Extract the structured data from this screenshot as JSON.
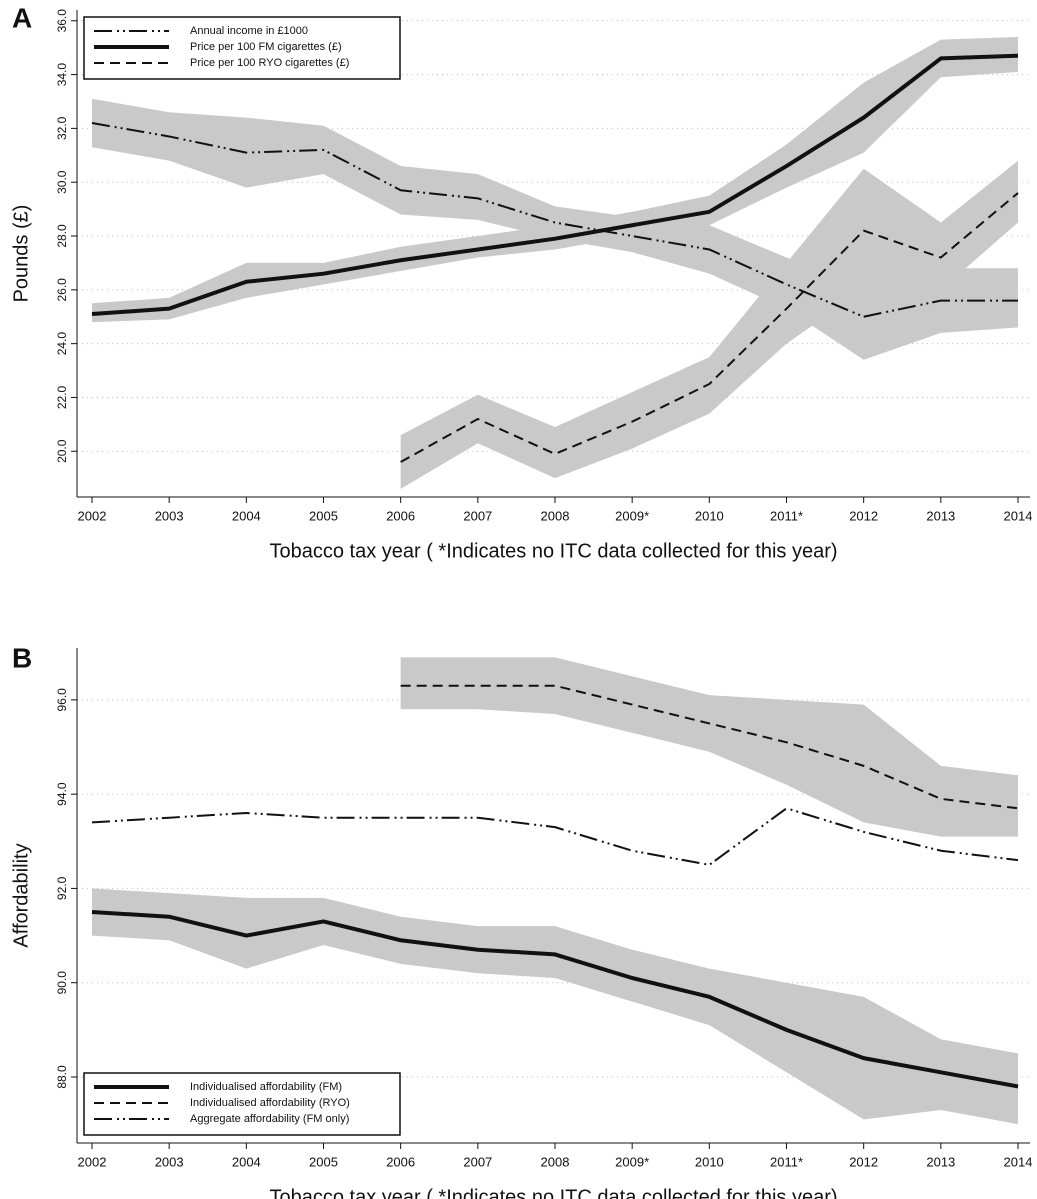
{
  "chart_data": [
    {
      "type": "line",
      "panel_label": "A",
      "xlabel": "Tobacco tax year ( *Indicates no ITC data collected for this year)",
      "ylabel": "Pounds (£)",
      "categories": [
        "2002",
        "2003",
        "2004",
        "2005",
        "2006",
        "2007",
        "2008",
        "2009*",
        "2010",
        "2011*",
        "2012",
        "2013",
        "2014"
      ],
      "ylim": [
        18.3,
        36.4
      ],
      "yticks": [
        {
          "value": 20,
          "label": "20.0"
        },
        {
          "value": 22,
          "label": "22.0"
        },
        {
          "value": 24,
          "label": "24.0"
        },
        {
          "value": 26,
          "label": "26.0"
        },
        {
          "value": 28,
          "label": "28.0"
        },
        {
          "value": 30,
          "label": "30.0"
        },
        {
          "value": 32,
          "label": "32.0"
        },
        {
          "value": 34,
          "label": "34.0"
        },
        {
          "value": 36,
          "label": "36.0"
        }
      ],
      "grid": true,
      "legend_position": "top-left",
      "band_color": "#c9c9c9",
      "series": [
        {
          "name": "Annual income in £1000",
          "color": "#111111",
          "linestyle": "dash-dot-dot",
          "values": [
            32.2,
            31.7,
            31.1,
            31.2,
            29.7,
            29.4,
            28.5,
            28.0,
            27.5,
            26.2,
            25.0,
            25.6,
            25.6
          ],
          "lower": [
            31.3,
            30.8,
            29.8,
            30.3,
            28.8,
            28.6,
            27.9,
            27.4,
            26.6,
            25.3,
            23.4,
            24.4,
            24.6
          ],
          "upper": [
            33.1,
            32.6,
            32.4,
            32.1,
            30.6,
            30.3,
            29.1,
            28.7,
            28.4,
            27.2,
            26.1,
            26.8,
            26.8
          ]
        },
        {
          "name": "Price per 100 FM cigarettes (£)",
          "color": "#111111",
          "linestyle": "solid",
          "values": [
            25.1,
            25.3,
            26.3,
            26.6,
            27.1,
            27.5,
            27.9,
            28.4,
            28.9,
            30.6,
            32.4,
            34.6,
            34.7
          ],
          "lower": [
            24.8,
            24.9,
            25.7,
            26.2,
            26.7,
            27.2,
            27.5,
            28.0,
            28.4,
            29.8,
            31.1,
            33.9,
            34.1
          ],
          "upper": [
            25.5,
            25.7,
            27.0,
            27.0,
            27.6,
            28.0,
            28.4,
            28.9,
            29.5,
            31.4,
            33.7,
            35.3,
            35.4
          ]
        },
        {
          "name": "Price per 100 RYO cigarettes (£)",
          "color": "#111111",
          "linestyle": "dash",
          "values": [
            null,
            null,
            null,
            null,
            19.6,
            21.2,
            19.9,
            21.1,
            22.5,
            25.3,
            28.2,
            27.2,
            29.6
          ],
          "lower": [
            null,
            null,
            null,
            null,
            18.6,
            20.3,
            19.0,
            20.1,
            21.4,
            24.0,
            26.0,
            26.0,
            28.5
          ],
          "upper": [
            null,
            null,
            null,
            null,
            20.6,
            22.1,
            20.9,
            22.2,
            23.5,
            27.0,
            30.5,
            28.5,
            30.8
          ]
        }
      ]
    },
    {
      "type": "line",
      "panel_label": "B",
      "xlabel": "Tobacco tax year ( *Indicates no ITC data collected for this year)",
      "ylabel": "Affordability",
      "categories": [
        "2002",
        "2003",
        "2004",
        "2005",
        "2006",
        "2007",
        "2008",
        "2009*",
        "2010",
        "2011*",
        "2012",
        "2013",
        "2014"
      ],
      "ylim": [
        86.6,
        97.1
      ],
      "yticks": [
        {
          "value": 88,
          "label": "88.0"
        },
        {
          "value": 90,
          "label": "90.0"
        },
        {
          "value": 92,
          "label": "92.0"
        },
        {
          "value": 94,
          "label": "94.0"
        },
        {
          "value": 96,
          "label": "96.0"
        }
      ],
      "grid": true,
      "legend_position": "bottom-left",
      "band_color": "#c9c9c9",
      "series": [
        {
          "name": "Individualised affordability (FM)",
          "color": "#111111",
          "linestyle": "solid",
          "values": [
            91.5,
            91.4,
            91.0,
            91.3,
            90.9,
            90.7,
            90.6,
            90.1,
            89.7,
            89.0,
            88.4,
            88.1,
            87.8
          ],
          "lower": [
            91.0,
            90.9,
            90.3,
            90.8,
            90.4,
            90.2,
            90.1,
            89.6,
            89.1,
            88.1,
            87.1,
            87.3,
            87.0
          ],
          "upper": [
            92.0,
            91.9,
            91.8,
            91.8,
            91.4,
            91.2,
            91.2,
            90.7,
            90.3,
            90.0,
            89.7,
            88.8,
            88.5
          ]
        },
        {
          "name": "Individualised affordability (RYO)",
          "color": "#111111",
          "linestyle": "dash",
          "values": [
            null,
            null,
            null,
            null,
            96.3,
            96.3,
            96.3,
            95.9,
            95.5,
            95.1,
            94.6,
            93.9,
            93.7
          ],
          "lower": [
            null,
            null,
            null,
            null,
            95.8,
            95.8,
            95.7,
            95.3,
            94.9,
            94.2,
            93.4,
            93.1,
            93.1
          ],
          "upper": [
            null,
            null,
            null,
            null,
            96.9,
            96.9,
            96.9,
            96.5,
            96.1,
            96.0,
            95.9,
            94.6,
            94.4
          ]
        },
        {
          "name": "Aggregate affordability (FM only)",
          "color": "#111111",
          "linestyle": "dash-dot-dot",
          "values": [
            93.4,
            93.5,
            93.6,
            93.5,
            93.5,
            93.5,
            93.3,
            92.8,
            92.5,
            93.7,
            93.2,
            92.8,
            92.6
          ]
        }
      ]
    }
  ]
}
